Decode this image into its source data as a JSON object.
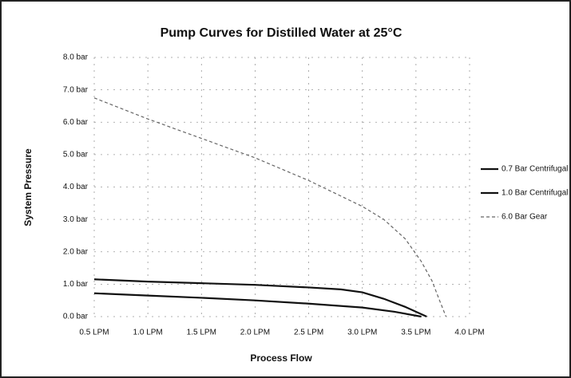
{
  "chart_data": {
    "type": "line",
    "title": "Pump Curves for Distilled Water at 25°C",
    "x_label": "Process Flow",
    "y_label": "System Pressure",
    "xlim": [
      0.5,
      4.0
    ],
    "ylim": [
      0,
      8
    ],
    "xticks": [
      {
        "value": 0.5,
        "label": "0.5 LPM"
      },
      {
        "value": 1.0,
        "label": "1.0 LPM"
      },
      {
        "value": 1.5,
        "label": "1.5 LPM"
      },
      {
        "value": 2.0,
        "label": "2.0 LPM"
      },
      {
        "value": 2.5,
        "label": "2.5 LPM"
      },
      {
        "value": 3.0,
        "label": "3.0 LPM"
      },
      {
        "value": 3.5,
        "label": "3.5 LPM"
      },
      {
        "value": 4.0,
        "label": "4.0 LPM"
      }
    ],
    "yticks": [
      {
        "value": 0,
        "label": "0.0 bar"
      },
      {
        "value": 1,
        "label": "1.0 bar"
      },
      {
        "value": 2,
        "label": "2.0 bar"
      },
      {
        "value": 3,
        "label": "3.0 bar"
      },
      {
        "value": 4,
        "label": "4.0 bar"
      },
      {
        "value": 5,
        "label": "5.0 bar"
      },
      {
        "value": 6,
        "label": "6.0 bar"
      },
      {
        "value": 7,
        "label": "7.0 bar"
      },
      {
        "value": 8,
        "label": "8.0 bar"
      }
    ],
    "grid": true,
    "legend": "right",
    "series": [
      {
        "name": "0.7 Bar Centrifugal",
        "color": "#111111",
        "dash": "solid",
        "x": [
          0.5,
          1.0,
          1.5,
          2.0,
          2.5,
          3.0,
          3.3,
          3.55
        ],
        "values": [
          0.72,
          0.65,
          0.58,
          0.5,
          0.4,
          0.28,
          0.15,
          0
        ]
      },
      {
        "name": "1.0 Bar Centrifugal",
        "color": "#111111",
        "dash": "solid",
        "x": [
          0.5,
          1.0,
          1.5,
          2.0,
          2.5,
          2.8,
          3.0,
          3.2,
          3.4,
          3.6
        ],
        "values": [
          1.15,
          1.08,
          1.03,
          0.98,
          0.9,
          0.84,
          0.75,
          0.55,
          0.3,
          0
        ]
      },
      {
        "name": "6.0 Bar Gear",
        "color": "#666666",
        "dash": "dashed",
        "x": [
          0.5,
          1.0,
          1.5,
          2.0,
          2.5,
          3.0,
          3.2,
          3.4,
          3.55,
          3.65,
          3.72,
          3.78
        ],
        "values": [
          6.75,
          6.1,
          5.5,
          4.9,
          4.2,
          3.4,
          3.0,
          2.4,
          1.7,
          1.1,
          0.5,
          0
        ]
      }
    ]
  }
}
